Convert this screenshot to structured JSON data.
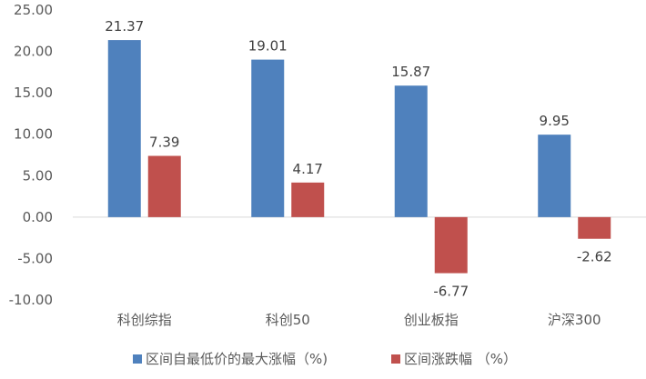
{
  "chart_data": {
    "type": "bar",
    "title": "",
    "xlabel": "",
    "ylabel": "",
    "categories": [
      "科创综指",
      "科创50",
      "创业板指",
      "沪深300"
    ],
    "series": [
      {
        "name": "区间自最低价的最大涨幅（%)",
        "color": "#4f81bd",
        "values": [
          21.37,
          19.01,
          15.87,
          9.95
        ],
        "labels": [
          "21.37",
          "19.01",
          "15.87",
          "9.95"
        ]
      },
      {
        "name": "区间涨跌幅 （%）",
        "color": "#c0504d",
        "values": [
          7.39,
          4.17,
          -6.77,
          -2.62
        ],
        "labels": [
          "7.39",
          "4.17",
          "-6.77",
          "-2.62"
        ]
      }
    ],
    "ylim": [
      -10,
      25
    ],
    "yticks": [
      25,
      20,
      15,
      10,
      5,
      0,
      -5,
      -10
    ],
    "ytick_labels": [
      "25.00",
      "20.00",
      "15.00",
      "10.00",
      "5.00",
      "0.00",
      "-5.00",
      "-10.00"
    ],
    "grid": false,
    "legend_position": "bottom"
  }
}
